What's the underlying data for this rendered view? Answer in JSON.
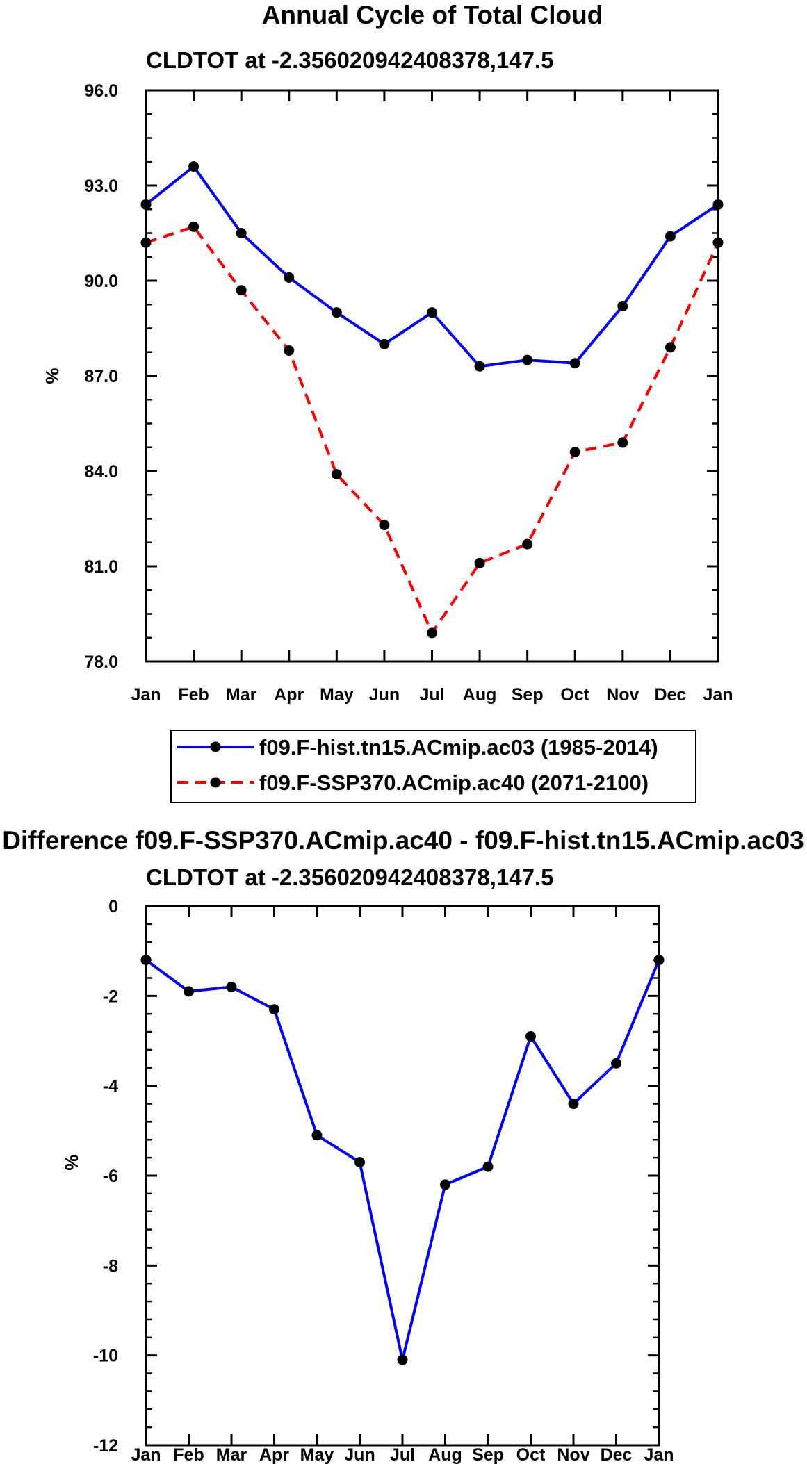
{
  "chart_data": [
    {
      "type": "line",
      "title": "Annual Cycle of Total Cloud",
      "subtitle": "CLDTOT at -2.356020942408378,147.5",
      "xlabel": "",
      "ylabel": "%",
      "categories": [
        "Jan",
        "Feb",
        "Mar",
        "Apr",
        "May",
        "Jun",
        "Jul",
        "Aug",
        "Sep",
        "Oct",
        "Nov",
        "Dec",
        "Jan"
      ],
      "ylim": [
        78.0,
        96.0
      ],
      "yticks": [
        "78.0",
        "81.0",
        "84.0",
        "87.0",
        "90.0",
        "93.0",
        "96.0"
      ],
      "legend_position": "bottom",
      "series": [
        {
          "name": "f09.F-hist.tn15.ACmip.ac03 (1985-2014)",
          "color": "#0000ff",
          "dashed": false,
          "values": [
            92.4,
            93.6,
            91.5,
            90.1,
            89.0,
            88.0,
            89.0,
            87.3,
            87.5,
            87.4,
            89.2,
            91.4,
            92.4
          ]
        },
        {
          "name": "f09.F-SSP370.ACmip.ac40 (2071-2100)",
          "color": "#ff0000",
          "dashed": true,
          "values": [
            91.2,
            91.7,
            89.7,
            87.8,
            83.9,
            82.3,
            78.9,
            81.1,
            81.7,
            84.6,
            84.9,
            87.9,
            91.2
          ]
        }
      ]
    },
    {
      "type": "line",
      "title": "Difference f09.F-SSP370.ACmip.ac40 - f09.F-hist.tn15.ACmip.ac03",
      "subtitle": "CLDTOT at -2.356020942408378,147.5",
      "xlabel": "",
      "ylabel": "%",
      "categories": [
        "Jan",
        "Feb",
        "Mar",
        "Apr",
        "May",
        "Jun",
        "Jul",
        "Aug",
        "Sep",
        "Oct",
        "Nov",
        "Dec",
        "Jan"
      ],
      "ylim": [
        -12,
        0
      ],
      "yticks": [
        "-12",
        "-10",
        "-8",
        "-6",
        "-4",
        "-2",
        "0"
      ],
      "series": [
        {
          "name": "Difference",
          "color": "#0000ff",
          "dashed": false,
          "values": [
            -1.2,
            -1.9,
            -1.8,
            -2.3,
            -5.1,
            -5.7,
            -10.1,
            -6.2,
            -5.8,
            -2.9,
            -4.4,
            -3.5,
            -1.2
          ]
        }
      ]
    }
  ]
}
